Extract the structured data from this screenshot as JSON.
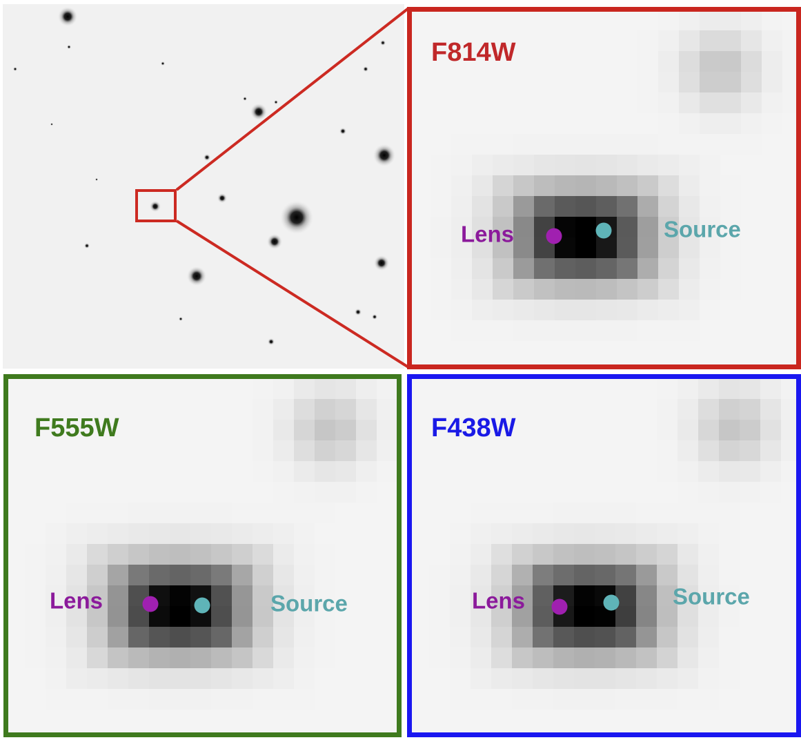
{
  "panels": [
    {
      "label": "F814W",
      "lens_label": "Lens",
      "source_label": "Source"
    },
    {
      "label": "F555W",
      "lens_label": "Lens",
      "source_label": "Source"
    },
    {
      "label": "F438W",
      "lens_label": "Lens",
      "source_label": "Source"
    }
  ]
}
